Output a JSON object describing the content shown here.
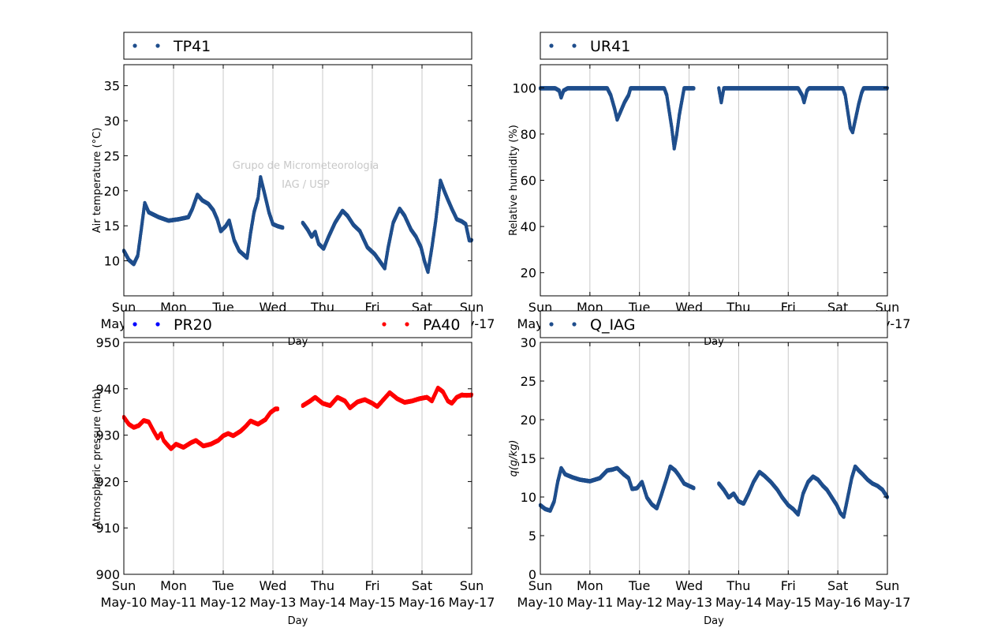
{
  "colors": {
    "blue_series": "#1f4e8c",
    "red_series": "#ff0000",
    "pure_blue": "#0000ff",
    "grid": "#c8c8c8"
  },
  "watermark": {
    "line1": "Grupo de Micrometeorologia",
    "line2": "IAG / USP"
  },
  "x_tick_days": [
    "Sun",
    "Mon",
    "Tue",
    "Wed",
    "Thu",
    "Fri",
    "Sat",
    "Sun"
  ],
  "x_tick_dates": [
    "May-10",
    "May-11",
    "May-12",
    "May-13",
    "May-14",
    "May-15",
    "May-16",
    "May-17"
  ],
  "chart_data": [
    {
      "type": "scatter",
      "xlabel": "Day",
      "ylabel": "Air temperature (°C)",
      "ylim": [
        5,
        38
      ],
      "yticks": [
        10,
        15,
        20,
        25,
        30,
        35
      ],
      "xlim": [
        0,
        7
      ],
      "grid": "vertical",
      "legend": "top",
      "series": [
        {
          "name": "TP41",
          "color": "#1f4e8c",
          "gaps": [
            [
              3.1,
              3.6
            ]
          ],
          "points": [
            [
              0,
              11.5
            ],
            [
              0.1,
              10.2
            ],
            [
              0.2,
              9.6
            ],
            [
              0.28,
              10.8
            ],
            [
              0.35,
              14.5
            ],
            [
              0.42,
              18.3
            ],
            [
              0.5,
              17
            ],
            [
              0.7,
              16.3
            ],
            [
              0.9,
              15.8
            ],
            [
              1.1,
              16
            ],
            [
              1.3,
              16.3
            ],
            [
              1.38,
              17.5
            ],
            [
              1.48,
              19.5
            ],
            [
              1.58,
              18.7
            ],
            [
              1.7,
              18.2
            ],
            [
              1.8,
              17.3
            ],
            [
              1.88,
              16
            ],
            [
              1.95,
              14.3
            ],
            [
              2.05,
              15
            ],
            [
              2.12,
              15.8
            ],
            [
              2.22,
              13
            ],
            [
              2.32,
              11.5
            ],
            [
              2.4,
              11
            ],
            [
              2.48,
              10.5
            ],
            [
              2.55,
              14
            ],
            [
              2.62,
              17
            ],
            [
              2.7,
              19
            ],
            [
              2.75,
              22
            ],
            [
              2.82,
              20
            ],
            [
              2.92,
              17
            ],
            [
              3,
              15.3
            ],
            [
              3.1,
              15
            ],
            [
              3.2,
              14.8
            ],
            [
              3.6,
              15.5
            ],
            [
              3.7,
              14.5
            ],
            [
              3.78,
              13.5
            ],
            [
              3.85,
              14.2
            ],
            [
              3.92,
              12.5
            ],
            [
              4.02,
              11.8
            ],
            [
              4.12,
              13.5
            ],
            [
              4.25,
              15.5
            ],
            [
              4.4,
              17.2
            ],
            [
              4.5,
              16.5
            ],
            [
              4.62,
              15.2
            ],
            [
              4.75,
              14.3
            ],
            [
              4.9,
              12
            ],
            [
              5.05,
              11
            ],
            [
              5.15,
              10
            ],
            [
              5.25,
              9
            ],
            [
              5.32,
              12
            ],
            [
              5.42,
              15.5
            ],
            [
              5.55,
              17.5
            ],
            [
              5.65,
              16.5
            ],
            [
              5.78,
              14.5
            ],
            [
              5.88,
              13.5
            ],
            [
              5.98,
              12
            ],
            [
              6.05,
              10
            ],
            [
              6.12,
              8.5
            ],
            [
              6.2,
              12
            ],
            [
              6.28,
              16
            ],
            [
              6.37,
              21.5
            ],
            [
              6.45,
              20
            ],
            [
              6.52,
              18.8
            ],
            [
              6.6,
              17.5
            ],
            [
              6.7,
              16
            ],
            [
              6.8,
              15.7
            ],
            [
              6.88,
              15.3
            ],
            [
              6.95,
              13
            ],
            [
              7,
              13
            ]
          ]
        }
      ]
    },
    {
      "type": "scatter",
      "xlabel": "Day",
      "ylabel": "Relative humidity (%)",
      "ylim": [
        10,
        110
      ],
      "yticks": [
        20,
        40,
        60,
        80,
        100
      ],
      "xlim": [
        0,
        7
      ],
      "grid": "vertical",
      "legend": "top",
      "series": [
        {
          "name": "UR41",
          "color": "#1f4e8c",
          "gaps": [
            [
              3.1,
              3.6
            ]
          ],
          "points": [
            [
              0,
              100
            ],
            [
              0.3,
              100
            ],
            [
              0.38,
              99
            ],
            [
              0.42,
              96
            ],
            [
              0.47,
              99
            ],
            [
              0.55,
              100
            ],
            [
              1.35,
              100
            ],
            [
              1.42,
              97
            ],
            [
              1.5,
              91
            ],
            [
              1.55,
              86.5
            ],
            [
              1.62,
              90
            ],
            [
              1.7,
              94
            ],
            [
              1.78,
              97
            ],
            [
              1.82,
              100
            ],
            [
              2.4,
              100
            ],
            [
              2.5,
              100
            ],
            [
              2.55,
              97
            ],
            [
              2.6,
              90
            ],
            [
              2.65,
              83
            ],
            [
              2.7,
              74
            ],
            [
              2.75,
              80
            ],
            [
              2.8,
              88
            ],
            [
              2.85,
              94
            ],
            [
              2.9,
              100
            ],
            [
              3.1,
              100
            ],
            [
              3.6,
              100
            ],
            [
              3.65,
              94
            ],
            [
              3.7,
              100
            ],
            [
              5.2,
              100
            ],
            [
              5.28,
              97
            ],
            [
              5.32,
              94
            ],
            [
              5.38,
              99
            ],
            [
              5.42,
              100
            ],
            [
              6.1,
              100
            ],
            [
              6.15,
              97
            ],
            [
              6.2,
              90
            ],
            [
              6.25,
              83
            ],
            [
              6.3,
              81
            ],
            [
              6.35,
              86
            ],
            [
              6.42,
              93
            ],
            [
              6.48,
              98
            ],
            [
              6.52,
              100
            ],
            [
              7,
              100
            ]
          ]
        }
      ]
    },
    {
      "type": "scatter",
      "xlabel": "Day",
      "ylabel": "Atmospheric pressure (mb)",
      "ylim": [
        900,
        950
      ],
      "yticks": [
        900,
        910,
        920,
        930,
        940,
        950
      ],
      "xlim": [
        0,
        7
      ],
      "grid": "vertical",
      "legend": "top",
      "series": [
        {
          "name": "PR20",
          "color": "#0000ff",
          "points": []
        },
        {
          "name": "PA40",
          "color": "#ff0000",
          "gaps": [
            [
              3.1,
              3.6
            ]
          ],
          "points": [
            [
              0,
              934
            ],
            [
              0.1,
              932.5
            ],
            [
              0.2,
              931.8
            ],
            [
              0.3,
              932.2
            ],
            [
              0.4,
              933.3
            ],
            [
              0.5,
              933
            ],
            [
              0.6,
              931
            ],
            [
              0.68,
              929.5
            ],
            [
              0.75,
              930.5
            ],
            [
              0.8,
              929
            ],
            [
              0.88,
              928
            ],
            [
              0.95,
              927.2
            ],
            [
              1.05,
              928.2
            ],
            [
              1.2,
              927.5
            ],
            [
              1.35,
              928.5
            ],
            [
              1.45,
              929
            ],
            [
              1.6,
              927.8
            ],
            [
              1.75,
              928.2
            ],
            [
              1.9,
              929
            ],
            [
              2,
              930
            ],
            [
              2.1,
              930.5
            ],
            [
              2.2,
              930
            ],
            [
              2.35,
              931
            ],
            [
              2.45,
              932
            ],
            [
              2.55,
              933.2
            ],
            [
              2.7,
              932.5
            ],
            [
              2.85,
              933.5
            ],
            [
              2.95,
              935
            ],
            [
              3.05,
              935.8
            ],
            [
              3.1,
              935.8
            ],
            [
              3.6,
              936.5
            ],
            [
              3.75,
              937.5
            ],
            [
              3.85,
              938.3
            ],
            [
              4.0,
              937
            ],
            [
              4.15,
              936.5
            ],
            [
              4.3,
              938.3
            ],
            [
              4.45,
              937.5
            ],
            [
              4.55,
              936
            ],
            [
              4.7,
              937.3
            ],
            [
              4.85,
              937.8
            ],
            [
              5.0,
              937
            ],
            [
              5.1,
              936.3
            ],
            [
              5.2,
              937.5
            ],
            [
              5.35,
              939.3
            ],
            [
              5.5,
              938
            ],
            [
              5.65,
              937.2
            ],
            [
              5.8,
              937.5
            ],
            [
              5.95,
              938
            ],
            [
              6.1,
              938.3
            ],
            [
              6.2,
              937.5
            ],
            [
              6.32,
              940.3
            ],
            [
              6.42,
              939.5
            ],
            [
              6.52,
              937.5
            ],
            [
              6.6,
              937
            ],
            [
              6.7,
              938.3
            ],
            [
              6.8,
              938.8
            ],
            [
              6.9,
              938.7
            ],
            [
              7,
              938.8
            ]
          ]
        }
      ]
    },
    {
      "type": "scatter",
      "xlabel": "Day",
      "ylabel": "q(g/kg)",
      "ylim": [
        0,
        30
      ],
      "yticks": [
        0,
        5,
        10,
        15,
        20,
        25,
        30
      ],
      "xlim": [
        0,
        7
      ],
      "grid": "vertical",
      "legend": "top",
      "series": [
        {
          "name": "Q_IAG",
          "color": "#1f4e8c",
          "gaps": [
            [
              3.1,
              3.6
            ]
          ],
          "points": [
            [
              0,
              9
            ],
            [
              0.1,
              8.5
            ],
            [
              0.2,
              8.3
            ],
            [
              0.28,
              9.5
            ],
            [
              0.35,
              12
            ],
            [
              0.42,
              13.8
            ],
            [
              0.5,
              13
            ],
            [
              0.65,
              12.6
            ],
            [
              0.8,
              12.3
            ],
            [
              1.0,
              12.1
            ],
            [
              1.2,
              12.5
            ],
            [
              1.35,
              13.5
            ],
            [
              1.45,
              13.6
            ],
            [
              1.55,
              13.8
            ],
            [
              1.68,
              13
            ],
            [
              1.78,
              12.5
            ],
            [
              1.85,
              11.1
            ],
            [
              1.95,
              11.2
            ],
            [
              2.05,
              12
            ],
            [
              2.15,
              10
            ],
            [
              2.25,
              9.1
            ],
            [
              2.35,
              8.6
            ],
            [
              2.45,
              10.5
            ],
            [
              2.55,
              12.5
            ],
            [
              2.62,
              14
            ],
            [
              2.72,
              13.5
            ],
            [
              2.8,
              12.8
            ],
            [
              2.9,
              11.8
            ],
            [
              3.0,
              11.5
            ],
            [
              3.1,
              11.2
            ],
            [
              3.6,
              11.8
            ],
            [
              3.7,
              11
            ],
            [
              3.8,
              10
            ],
            [
              3.9,
              10.5
            ],
            [
              4.0,
              9.5
            ],
            [
              4.1,
              9.2
            ],
            [
              4.2,
              10.5
            ],
            [
              4.3,
              12
            ],
            [
              4.42,
              13.3
            ],
            [
              4.52,
              12.8
            ],
            [
              4.65,
              12
            ],
            [
              4.78,
              11
            ],
            [
              4.88,
              10
            ],
            [
              5.0,
              9
            ],
            [
              5.1,
              8.5
            ],
            [
              5.2,
              7.8
            ],
            [
              5.3,
              10.5
            ],
            [
              5.4,
              12
            ],
            [
              5.5,
              12.7
            ],
            [
              5.6,
              12.3
            ],
            [
              5.7,
              11.5
            ],
            [
              5.78,
              11
            ],
            [
              5.88,
              10
            ],
            [
              5.98,
              9
            ],
            [
              6.05,
              8
            ],
            [
              6.12,
              7.5
            ],
            [
              6.2,
              10
            ],
            [
              6.28,
              12.5
            ],
            [
              6.35,
              14
            ],
            [
              6.42,
              13.5
            ],
            [
              6.5,
              13
            ],
            [
              6.6,
              12.3
            ],
            [
              6.7,
              11.8
            ],
            [
              6.8,
              11.5
            ],
            [
              6.9,
              11
            ],
            [
              7,
              10
            ]
          ]
        }
      ]
    }
  ]
}
